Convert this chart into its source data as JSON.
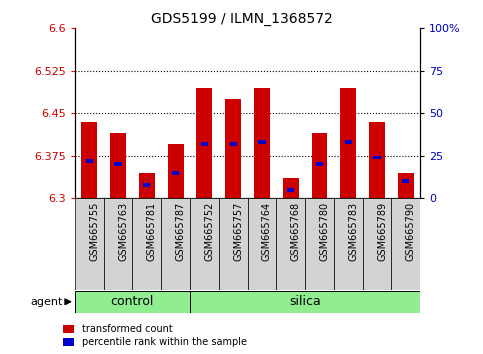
{
  "title": "GDS5199 / ILMN_1368572",
  "samples": [
    "GSM665755",
    "GSM665763",
    "GSM665781",
    "GSM665787",
    "GSM665752",
    "GSM665757",
    "GSM665764",
    "GSM665768",
    "GSM665780",
    "GSM665783",
    "GSM665789",
    "GSM665790"
  ],
  "transformed_count": [
    6.435,
    6.415,
    6.345,
    6.395,
    6.495,
    6.475,
    6.495,
    6.335,
    6.415,
    6.495,
    6.435,
    6.345
  ],
  "percentile_rank": [
    22,
    20,
    8,
    15,
    32,
    32,
    33,
    5,
    20,
    33,
    24,
    10
  ],
  "groups": [
    {
      "label": "control",
      "start": 0,
      "end": 4,
      "color": "#90EE90"
    },
    {
      "label": "silica",
      "start": 4,
      "end": 12,
      "color": "#90EE90"
    }
  ],
  "ylim_left": [
    6.3,
    6.6
  ],
  "ylim_right": [
    0,
    100
  ],
  "yticks_left": [
    6.3,
    6.375,
    6.45,
    6.525,
    6.6
  ],
  "yticks_right": [
    0,
    25,
    50,
    75,
    100
  ],
  "bar_bottom": 6.3,
  "bar_color": "#CC0000",
  "pct_color": "#0000CC",
  "bar_width": 0.55,
  "pct_bar_width": 0.25,
  "background_color": "#ffffff",
  "plot_bg": "#ffffff",
  "grid_color": "#000000",
  "legend_items": [
    "transformed count",
    "percentile rank within the sample"
  ],
  "legend_colors": [
    "#CC0000",
    "#0000CC"
  ],
  "agent_label": "agent",
  "tick_label_color_left": "#CC0000",
  "tick_label_color_right": "#0000CC",
  "gray_box_color": "#D3D3D3",
  "group_color": "#90EE90"
}
